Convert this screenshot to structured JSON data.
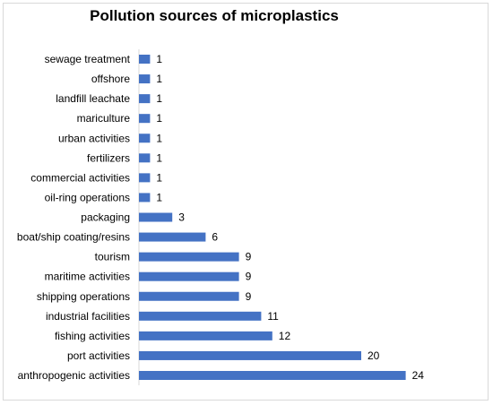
{
  "chart_data": {
    "type": "bar",
    "orientation": "horizontal",
    "title": "Pollution sources of microplastics",
    "xlabel": "",
    "ylabel": "",
    "categories": [
      "sewage treatment",
      "offshore",
      "landfill leachate",
      "mariculture",
      "urban activities",
      "fertilizers",
      "commercial activities",
      "oil-ring operations",
      "packaging",
      "boat/ship coating/resins",
      "tourism",
      "maritime activities",
      "shipping operations",
      "industrial facilities",
      "fishing activities",
      "port activities",
      "anthropogenic activities"
    ],
    "values": [
      1,
      1,
      1,
      1,
      1,
      1,
      1,
      1,
      3,
      6,
      9,
      9,
      9,
      11,
      12,
      20,
      24
    ],
    "xlim": [
      0,
      24
    ],
    "grid": false,
    "legend": "none",
    "data_labels": true,
    "bar_color": "#4472c4"
  }
}
